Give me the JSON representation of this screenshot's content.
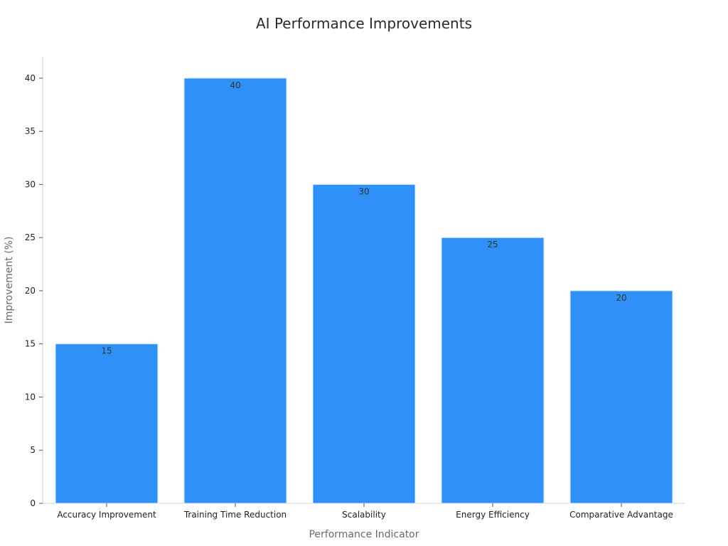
{
  "chart_data": {
    "type": "bar",
    "title": "AI Performance Improvements",
    "xlabel": "Performance Indicator",
    "ylabel": "Improvement (%)",
    "categories": [
      "Accuracy Improvement",
      "Training Time Reduction",
      "Scalability",
      "Energy Efficiency",
      "Comparative Advantage"
    ],
    "values": [
      15,
      40,
      30,
      25,
      20
    ],
    "ylim": [
      0,
      42
    ],
    "yticks": [
      0,
      5,
      10,
      15,
      20,
      25,
      30,
      35,
      40
    ],
    "bar_color": "#2f91f7",
    "grid": false,
    "legend": "none"
  }
}
